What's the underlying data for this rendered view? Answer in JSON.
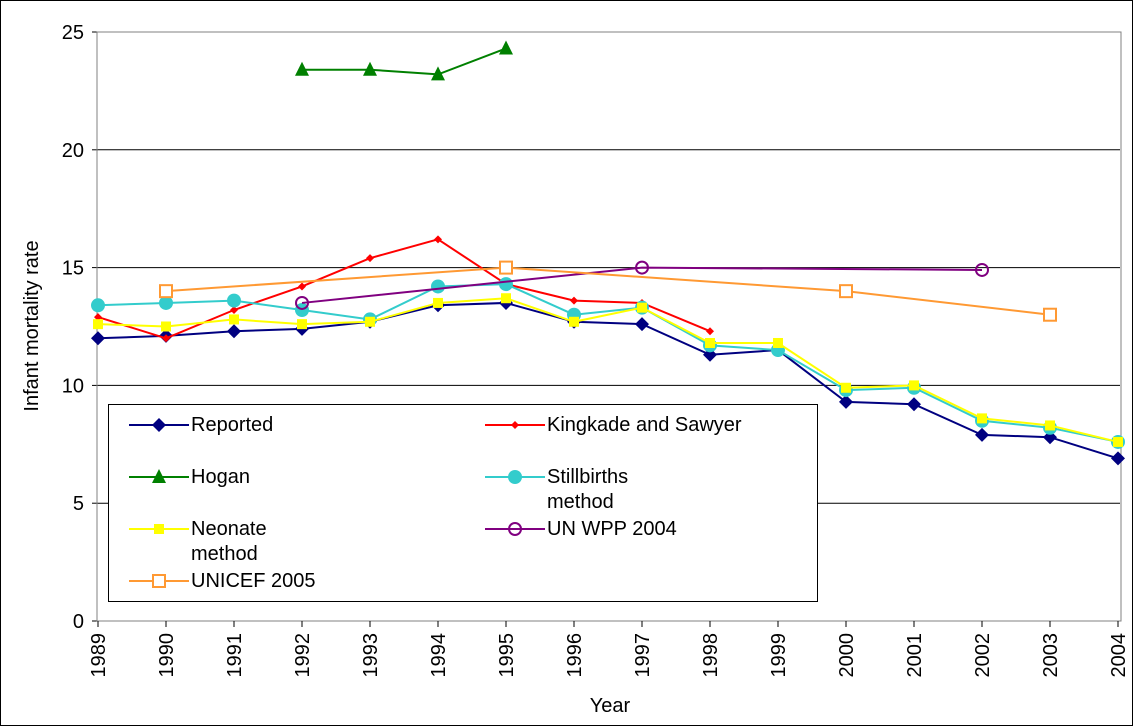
{
  "chart_data": {
    "type": "line",
    "x_label": "Year",
    "y_label": "Infant mortality rate",
    "x": [
      1989,
      1990,
      1991,
      1992,
      1993,
      1994,
      1995,
      1996,
      1997,
      1998,
      1999,
      2000,
      2001,
      2002,
      2003,
      2004
    ],
    "xlim": [
      1989,
      2004
    ],
    "xticks": [
      1989,
      1990,
      1991,
      1992,
      1993,
      1994,
      1995,
      1996,
      1997,
      1998,
      1999,
      2000,
      2001,
      2002,
      2003,
      2004
    ],
    "ylim": [
      0,
      25
    ],
    "yticks": [
      0,
      5,
      10,
      15,
      20,
      25
    ],
    "grid": true,
    "series": [
      {
        "name": "Reported",
        "color": "#000080",
        "marker": "diamond",
        "values": [
          12.0,
          12.1,
          12.3,
          12.4,
          12.7,
          13.4,
          13.5,
          12.7,
          12.6,
          11.3,
          11.5,
          9.3,
          9.2,
          7.9,
          7.8,
          6.9
        ]
      },
      {
        "name": "Kingkade and Sawyer",
        "color": "#ff0000",
        "marker": "small-diamond",
        "x": [
          1989,
          1990,
          1991,
          1992,
          1993,
          1994,
          1995,
          1996,
          1997,
          1998
        ],
        "values": [
          12.9,
          12.0,
          13.2,
          14.2,
          15.4,
          16.2,
          14.3,
          13.6,
          13.5,
          12.3
        ]
      },
      {
        "name": "Hogan",
        "color": "#008000",
        "marker": "triangle",
        "x": [
          1992,
          1993,
          1994,
          1995
        ],
        "values": [
          23.4,
          23.4,
          23.2,
          24.3
        ]
      },
      {
        "name": "Stillbirths method",
        "color": "#33cccc",
        "marker": "circle",
        "values": [
          13.4,
          13.5,
          13.6,
          13.2,
          12.8,
          14.2,
          14.3,
          13.0,
          13.3,
          11.7,
          11.5,
          9.8,
          9.9,
          8.5,
          8.2,
          7.6
        ]
      },
      {
        "name": "Neonate method",
        "color": "#ffff00",
        "marker": "square",
        "values": [
          12.6,
          12.5,
          12.8,
          12.6,
          12.7,
          13.5,
          13.7,
          12.7,
          13.3,
          11.8,
          11.8,
          9.9,
          10.0,
          8.6,
          8.3,
          7.6
        ]
      },
      {
        "name": "UN WPP 2004",
        "color": "#800080",
        "marker": "open-circle",
        "x": [
          1992,
          1997,
          2002
        ],
        "values": [
          13.5,
          15.0,
          14.9
        ]
      },
      {
        "name": "UNICEF 2005",
        "color": "#ff9933",
        "marker": "open-square",
        "x": [
          1990,
          1995,
          2000,
          2003
        ],
        "values": [
          14.0,
          15.0,
          14.0,
          13.0
        ]
      }
    ]
  }
}
